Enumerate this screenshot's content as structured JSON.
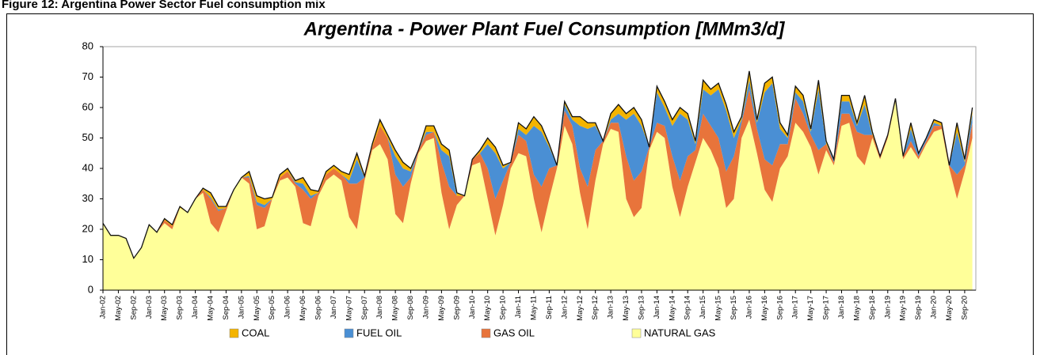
{
  "caption": "Figure 12: Argentina Power Sector Fuel consumption mix",
  "chart_data": {
    "type": "stacked_area",
    "title": "Argentina - Power Plant Fuel Consumption [MMm3/d]",
    "categories": [
      "Jan-02",
      null,
      "May-02",
      null,
      "Sep-02",
      null,
      "Jan-03",
      null,
      "May-03",
      null,
      "Sep-03",
      null,
      "Jan-04",
      null,
      "May-04",
      null,
      "Sep-04",
      null,
      "Jan-05",
      null,
      "May-05",
      null,
      "Sep-05",
      null,
      "Jan-06",
      null,
      "May-06",
      null,
      "Sep-06",
      null,
      "Jan-07",
      null,
      "May-07",
      null,
      "Sep-07",
      null,
      "Jan-08",
      null,
      "May-08",
      null,
      "Sep-08",
      null,
      "Jan-09",
      null,
      "May-09",
      null,
      "Sep-09",
      null,
      "Jan-10",
      null,
      "May-10",
      null,
      "Sep-10",
      null,
      "Jan-11",
      null,
      "May-11",
      null,
      "Sep-11",
      null,
      "Jan-12",
      null,
      "May-12",
      null,
      "Sep-12",
      null,
      "Jan-13",
      null,
      "May-13",
      null,
      "Sep-13",
      null,
      "Jan-14",
      null,
      "May-14",
      null,
      "Sep-14",
      null,
      "Jan-15",
      null,
      "May-15",
      null,
      "Sep-15",
      null,
      "Jan-16",
      null,
      "May-16",
      null,
      "Sep-16",
      null,
      "Jan-17",
      null,
      "May-17",
      null,
      "Sep-17",
      null,
      "Jan-18",
      null,
      "May-18",
      null,
      "Sep-18",
      null,
      "Jan-19",
      null,
      "May-19",
      null,
      "Sep-19",
      null,
      "Jan-20",
      null,
      "May-20",
      null,
      "Sep-20",
      null
    ],
    "series": [
      {
        "name": "COAL",
        "color": "#f4b400",
        "values": [
          0,
          0,
          0,
          0,
          0,
          0,
          0,
          0,
          0.5,
          0.5,
          0.5,
          0,
          0,
          0.5,
          1.5,
          1,
          0.5,
          0,
          0,
          1.5,
          2,
          2,
          0.5,
          1,
          1,
          0.5,
          2,
          2,
          0.5,
          1,
          1,
          1,
          2,
          2,
          0.5,
          1,
          2,
          1,
          2,
          2,
          1,
          0,
          2,
          2,
          2,
          2,
          1,
          0,
          0,
          1,
          2,
          2,
          1,
          0,
          2,
          2,
          3,
          2,
          1,
          0,
          1,
          1,
          3,
          2,
          1,
          0,
          2,
          3,
          2,
          2,
          2,
          0,
          2,
          2,
          2,
          2,
          2,
          1,
          3,
          2,
          2,
          2,
          2,
          1,
          3,
          1,
          3,
          2,
          2,
          1,
          2,
          2,
          1,
          3,
          1,
          0,
          2,
          2,
          1,
          3,
          1,
          0,
          0,
          1,
          0,
          2,
          0,
          0,
          1,
          1,
          0,
          3,
          1,
          2
        ]
      },
      {
        "name": "FUEL OIL",
        "color": "#4a8fd4",
        "values": [
          0,
          0,
          0,
          0,
          0,
          0,
          0,
          0,
          0,
          0,
          0,
          0,
          0,
          0,
          0.5,
          0.5,
          0,
          0,
          0,
          0.5,
          1,
          1,
          0,
          0,
          0,
          0.5,
          2,
          1,
          0,
          0,
          0,
          0,
          1,
          8,
          0,
          0,
          0,
          0,
          6,
          6,
          2,
          0,
          1,
          0,
          4,
          10,
          0,
          0,
          0,
          0,
          8,
          15,
          4,
          0,
          2,
          2,
          16,
          18,
          7,
          0,
          2,
          2,
          14,
          19,
          8,
          0,
          1,
          3,
          12,
          22,
          15,
          0,
          10,
          6,
          10,
          22,
          12,
          2,
          8,
          10,
          16,
          20,
          6,
          1,
          3,
          2,
          22,
          27,
          5,
          2,
          2,
          4,
          1,
          20,
          0,
          1,
          4,
          4,
          2,
          10,
          0,
          0,
          0,
          0,
          0,
          4,
          1,
          1,
          1,
          0,
          0,
          14,
          1,
          3
        ]
      },
      {
        "name": "GAS OIL",
        "color": "#e8743b",
        "values": [
          0,
          0,
          0,
          0,
          0,
          0,
          0,
          0,
          1,
          1,
          0,
          0,
          0,
          1,
          8,
          7,
          1,
          0,
          0,
          2,
          8,
          6,
          0,
          1,
          2,
          1,
          11,
          9,
          1,
          2,
          2,
          2,
          11,
          15,
          1,
          1,
          6,
          7,
          13,
          12,
          2,
          1,
          2,
          2,
          10,
          14,
          3,
          0,
          2,
          3,
          10,
          12,
          8,
          2,
          6,
          5,
          8,
          15,
          10,
          1,
          5,
          6,
          8,
          14,
          10,
          1,
          2,
          3,
          14,
          12,
          12,
          1,
          3,
          4,
          10,
          12,
          10,
          4,
          8,
          8,
          10,
          12,
          14,
          5,
          10,
          8,
          10,
          12,
          8,
          4,
          8,
          6,
          4,
          8,
          2,
          1,
          4,
          3,
          8,
          10,
          1,
          1,
          1,
          0,
          1,
          2,
          1,
          1,
          2,
          1,
          1,
          8,
          2,
          5
        ]
      },
      {
        "name": "NATURAL GAS",
        "color": "#ffff99",
        "values": [
          22,
          18,
          18,
          17,
          10.5,
          14,
          21.5,
          19,
          22,
          20,
          27,
          25.5,
          30,
          32,
          22,
          19,
          26,
          33,
          37,
          35,
          20,
          21,
          30,
          36,
          37,
          34,
          22,
          21,
          31,
          36,
          38,
          36,
          24,
          20,
          36,
          46,
          48,
          43,
          25,
          22,
          35,
          45,
          49,
          50,
          32,
          20,
          28,
          31,
          41,
          42,
          30,
          18,
          28,
          40,
          45,
          44,
          30,
          19,
          30,
          40,
          54,
          48,
          32,
          20,
          36,
          48,
          53,
          52,
          30,
          24,
          27,
          46,
          52,
          50,
          34,
          24,
          34,
          42,
          50,
          46,
          40,
          27,
          30,
          50,
          56,
          45,
          33,
          29,
          40,
          44,
          55,
          52,
          47,
          38,
          46,
          41,
          54,
          55,
          44,
          41,
          50,
          43,
          50,
          62,
          43,
          47,
          43,
          48,
          52,
          53,
          40,
          30,
          39,
          50
        ]
      }
    ],
    "stack_order": "reverse",
    "ylim": [
      0,
      80
    ],
    "yticks": [
      0,
      10,
      20,
      30,
      40,
      50,
      60,
      70,
      80
    ],
    "grid": false,
    "legend": "bottom"
  }
}
